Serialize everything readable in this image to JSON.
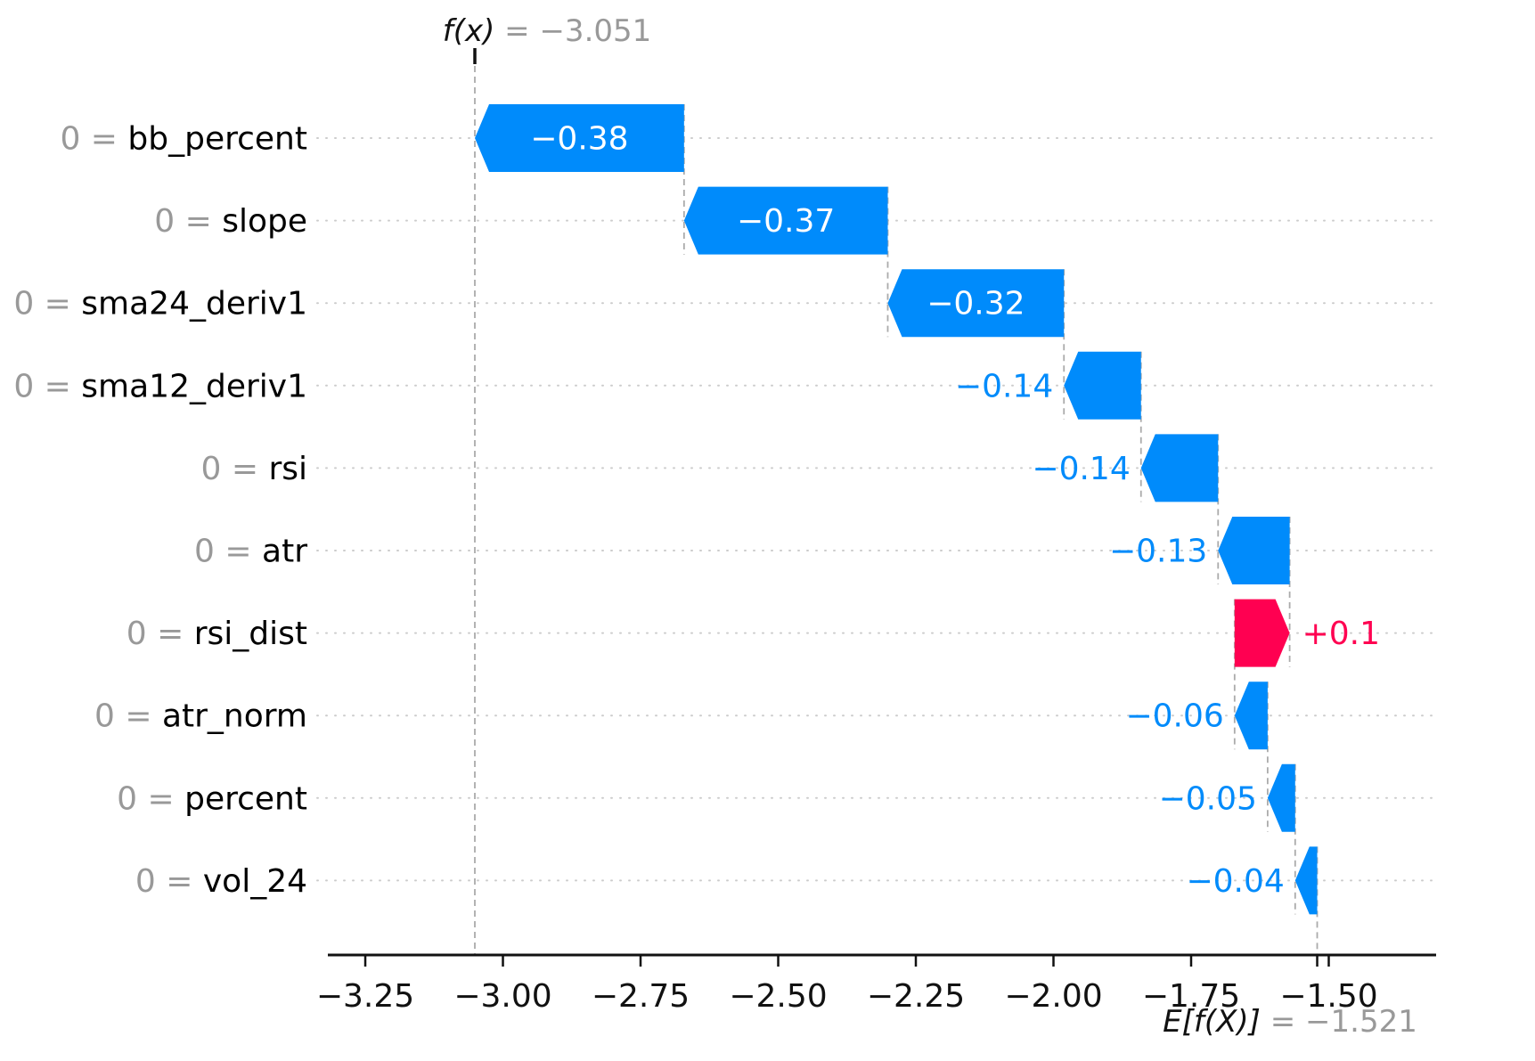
{
  "title": {
    "function_label": "f(x)",
    "value_text": " = −3.051"
  },
  "footer": {
    "expectation_label": "E[f(X)]",
    "value_text": " = −1.521"
  },
  "chart_data": {
    "type": "bar",
    "subtype": "shap-waterfall",
    "title": "f(x) = −3.051",
    "xlabel": "",
    "ylabel": "",
    "fx": -3.051,
    "base_value": -1.521,
    "xlim": [
      -3.318,
      -1.305
    ],
    "grid": "dotted-row-lines",
    "features": [
      {
        "feature_value": "0",
        "name": "bb_percent",
        "contribution": -0.38,
        "display": "−0.38",
        "from": -2.671,
        "to": -3.051,
        "color_role": "negative",
        "label_placement": "inside"
      },
      {
        "feature_value": "0",
        "name": "slope",
        "contribution": -0.37,
        "display": "−0.37",
        "from": -2.301,
        "to": -2.671,
        "color_role": "negative",
        "label_placement": "inside"
      },
      {
        "feature_value": "0",
        "name": "sma24_deriv1",
        "contribution": -0.32,
        "display": "−0.32",
        "from": -1.981,
        "to": -2.301,
        "color_role": "negative",
        "label_placement": "inside"
      },
      {
        "feature_value": "0",
        "name": "sma12_deriv1",
        "contribution": -0.14,
        "display": "−0.14",
        "from": -1.841,
        "to": -1.981,
        "color_role": "negative",
        "label_placement": "outside"
      },
      {
        "feature_value": "0",
        "name": "rsi",
        "contribution": -0.14,
        "display": "−0.14",
        "from": -1.701,
        "to": -1.841,
        "color_role": "negative",
        "label_placement": "outside"
      },
      {
        "feature_value": "0",
        "name": "atr",
        "contribution": -0.13,
        "display": "−0.13",
        "from": -1.571,
        "to": -1.701,
        "color_role": "negative",
        "label_placement": "outside"
      },
      {
        "feature_value": "0",
        "name": "rsi_dist",
        "contribution": 0.1,
        "display": "+0.1",
        "from": -1.671,
        "to": -1.571,
        "color_role": "positive",
        "label_placement": "outside"
      },
      {
        "feature_value": "0",
        "name": "atr_norm",
        "contribution": -0.06,
        "display": "−0.06",
        "from": -1.611,
        "to": -1.671,
        "color_role": "negative",
        "label_placement": "outside"
      },
      {
        "feature_value": "0",
        "name": "percent",
        "contribution": -0.05,
        "display": "−0.05",
        "from": -1.561,
        "to": -1.611,
        "color_role": "negative",
        "label_placement": "outside"
      },
      {
        "feature_value": "0",
        "name": "vol_24",
        "contribution": -0.04,
        "display": "−0.04",
        "from": -1.521,
        "to": -1.561,
        "color_role": "negative",
        "label_placement": "outside"
      }
    ],
    "feature_label_separator": " = ",
    "xticks": [
      -3.25,
      -3.0,
      -2.75,
      -2.5,
      -2.25,
      -2.0,
      -1.75,
      -1.5
    ],
    "xtick_labels": [
      "−3.25",
      "−3.00",
      "−2.75",
      "−2.50",
      "−2.25",
      "−2.00",
      "−1.75",
      "−1.50"
    ],
    "colors": {
      "negative": "#008bfb",
      "positive": "#ff0051",
      "bar_label_inside": "#ffffff",
      "muted_text": "#999999",
      "text": "#111111",
      "gridline": "#cccccc",
      "connector": "#ababab"
    }
  }
}
